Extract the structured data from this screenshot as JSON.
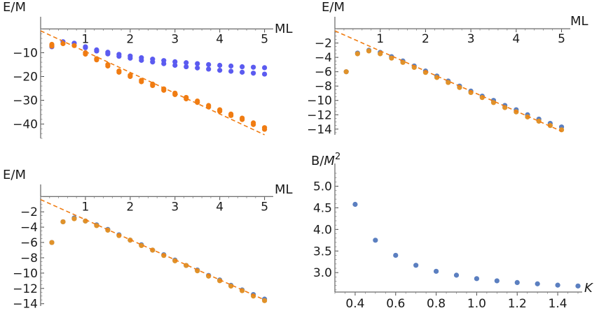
{
  "chart_data": [
    {
      "type": "scatter",
      "panel": "top-left",
      "xlabel": "ML",
      "ylabel": "E/M",
      "xlim": [
        0,
        5.1
      ],
      "ylim": [
        -46,
        1
      ],
      "xticks": [
        1,
        2,
        3,
        4,
        5
      ],
      "yticks": [
        -10,
        -20,
        -30,
        -40
      ],
      "series": [
        {
          "color": "#5b5bf0",
          "marker": "dot",
          "x": [
            0.25,
            0.25,
            0.5,
            0.75,
            1.0,
            1.0,
            1.25,
            1.25,
            1.5,
            1.5,
            1.75,
            1.75,
            2.0,
            2.0,
            2.25,
            2.25,
            2.5,
            2.5,
            2.75,
            2.75,
            3.0,
            3.0,
            3.25,
            3.25,
            3.5,
            3.5,
            3.75,
            3.75,
            4.0,
            4.0,
            4.25,
            4.25,
            4.5,
            4.5,
            4.75,
            4.75,
            5.0,
            5.0
          ],
          "y": [
            -7.0,
            -7.5,
            -5.4,
            -6.0,
            -7.5,
            -7.9,
            -8.8,
            -9.3,
            -9.8,
            -10.5,
            -10.7,
            -11.5,
            -11.4,
            -12.3,
            -12.1,
            -13.2,
            -12.7,
            -13.9,
            -13.3,
            -14.6,
            -13.8,
            -15.3,
            -14.2,
            -15.9,
            -14.6,
            -16.4,
            -15.0,
            -16.9,
            -15.3,
            -17.4,
            -15.6,
            -17.8,
            -15.9,
            -18.2,
            -16.1,
            -18.6,
            -16.3,
            -19.0
          ]
        },
        {
          "color": "#f07c12",
          "marker": "dot",
          "x": [
            0.25,
            0.5,
            0.75,
            1.0,
            1.25,
            1.5,
            1.75,
            2.0,
            2.25,
            2.5,
            2.75,
            3.0,
            3.25,
            3.5,
            3.75,
            4.0,
            4.25,
            4.5,
            4.75,
            5.0,
            0.25,
            1.0,
            1.25,
            1.5,
            1.75,
            2.0,
            2.25,
            2.5,
            2.75,
            3.0,
            3.25,
            3.5,
            3.75,
            4.0,
            4.25,
            4.5,
            4.75,
            5.0
          ],
          "y": [
            -6.5,
            -6.2,
            -7.0,
            -10.0,
            -12.5,
            -15.0,
            -17.7,
            -19.5,
            -21.6,
            -23.2,
            -25.2,
            -27.0,
            -28.8,
            -30.3,
            -32.2,
            -34.0,
            -35.8,
            -37.5,
            -39.5,
            -41.5,
            -7.2,
            -10.6,
            -13.0,
            -15.6,
            -18.2,
            -20.0,
            -22.2,
            -23.8,
            -25.8,
            -27.6,
            -29.4,
            -30.9,
            -32.8,
            -34.6,
            -36.4,
            -38.1,
            -40.2,
            -42.2
          ]
        },
        {
          "color": "#f07c12",
          "marker": "dashed-line",
          "x": [
            0,
            5
          ],
          "y": [
            -0.8,
            -44.5
          ]
        }
      ]
    },
    {
      "type": "scatter",
      "panel": "top-right",
      "xlabel": "ML",
      "ylabel": "E/M",
      "xlim": [
        0,
        5.1
      ],
      "ylim": [
        -14.8,
        0.3
      ],
      "xticks": [
        1,
        2,
        3,
        4,
        5
      ],
      "yticks": [
        -2,
        -4,
        -6,
        -8,
        -10,
        -12,
        -14
      ],
      "series": [
        {
          "color": "#5b7fc0",
          "marker": "dot",
          "x": [
            0.25,
            0.5,
            0.75,
            1.0,
            1.25,
            1.5,
            1.75,
            2.0,
            2.25,
            2.5,
            2.75,
            3.0,
            3.25,
            3.5,
            3.75,
            4.0,
            4.25,
            4.5,
            4.75,
            5.0
          ],
          "y": [
            -6.0,
            -3.4,
            -3.0,
            -3.3,
            -3.9,
            -4.5,
            -5.2,
            -5.9,
            -6.6,
            -7.3,
            -8.0,
            -8.7,
            -9.4,
            -10.0,
            -10.7,
            -11.3,
            -12.0,
            -12.6,
            -13.2,
            -13.7
          ]
        },
        {
          "color": "#e0922a",
          "marker": "dot",
          "x": [
            0.25,
            0.5,
            0.75,
            1.0,
            1.25,
            1.5,
            1.75,
            2.0,
            2.25,
            2.5,
            2.75,
            3.0,
            3.25,
            3.5,
            3.75,
            4.0,
            4.25,
            4.5,
            4.75,
            5.0
          ],
          "y": [
            -6.0,
            -3.5,
            -3.1,
            -3.5,
            -4.1,
            -4.7,
            -5.4,
            -6.1,
            -6.8,
            -7.5,
            -8.2,
            -8.9,
            -9.6,
            -10.3,
            -11.0,
            -11.6,
            -12.3,
            -12.9,
            -13.5,
            -14.1
          ]
        },
        {
          "color": "#f07c12",
          "marker": "dashed-line",
          "x": [
            0,
            5
          ],
          "y": [
            -0.3,
            -14.3
          ]
        }
      ]
    },
    {
      "type": "scatter",
      "panel": "bottom-left",
      "xlabel": "ML",
      "ylabel": "E/M",
      "xlim": [
        0,
        5.1
      ],
      "ylim": [
        -14.3,
        0.3
      ],
      "xticks": [
        1,
        2,
        3,
        4,
        5
      ],
      "yticks": [
        -2,
        -4,
        -6,
        -8,
        -10,
        -12,
        -14
      ],
      "series": [
        {
          "color": "#5b7fc0",
          "marker": "dot",
          "x": [
            0.25,
            0.5,
            0.75,
            1.0,
            1.25,
            1.5,
            1.75,
            2.0,
            2.25,
            2.5,
            2.75,
            3.0,
            3.25,
            3.5,
            3.75,
            4.0,
            4.25,
            4.5,
            4.75,
            5.0
          ],
          "y": [
            -6.0,
            -3.3,
            -2.8,
            -3.2,
            -3.7,
            -4.3,
            -5.0,
            -5.7,
            -6.3,
            -7.0,
            -7.6,
            -8.3,
            -9.0,
            -9.6,
            -10.3,
            -10.9,
            -11.6,
            -12.2,
            -12.8,
            -13.4
          ]
        },
        {
          "color": "#e0922a",
          "marker": "dot",
          "x": [
            0.25,
            0.5,
            0.75,
            1.0,
            1.25,
            1.5,
            1.75,
            2.0,
            2.25,
            2.5,
            2.75,
            3.0,
            3.25,
            3.5,
            3.75,
            4.0,
            4.25,
            4.5,
            4.75,
            5.0
          ],
          "y": [
            -6.0,
            -3.3,
            -2.9,
            -3.2,
            -3.8,
            -4.4,
            -5.1,
            -5.7,
            -6.4,
            -7.0,
            -7.7,
            -8.4,
            -9.0,
            -9.7,
            -10.4,
            -11.0,
            -11.7,
            -12.3,
            -13.0,
            -13.6
          ]
        },
        {
          "color": "#f07c12",
          "marker": "dashed-line",
          "x": [
            0,
            5
          ],
          "y": [
            -0.4,
            -13.5
          ]
        }
      ]
    },
    {
      "type": "scatter",
      "panel": "bottom-right",
      "xlabel": "K",
      "ylabel_base": "B/M",
      "ylabel_exp": "2",
      "xlim": [
        0.3,
        1.5
      ],
      "ylim": [
        2.55,
        5.3
      ],
      "xticks": [
        0.4,
        0.6,
        0.8,
        1.0,
        1.2,
        1.4
      ],
      "xtick_labels": [
        "0.4",
        "0.6",
        "0.8",
        "1.0",
        "1.2",
        "1.4"
      ],
      "yticks": [
        3.0,
        3.5,
        4.0,
        4.5,
        5.0
      ],
      "ytick_labels": [
        "3.0",
        "3.5",
        "4.0",
        "4.5",
        "5.0"
      ],
      "series": [
        {
          "color": "#5b7fc0",
          "marker": "dot",
          "x": [
            0.4,
            0.5,
            0.6,
            0.7,
            0.8,
            0.9,
            1.0,
            1.1,
            1.2,
            1.3,
            1.4,
            1.5
          ],
          "y": [
            4.58,
            3.75,
            3.4,
            3.17,
            3.03,
            2.94,
            2.86,
            2.81,
            2.77,
            2.74,
            2.71,
            2.69
          ]
        }
      ]
    }
  ]
}
